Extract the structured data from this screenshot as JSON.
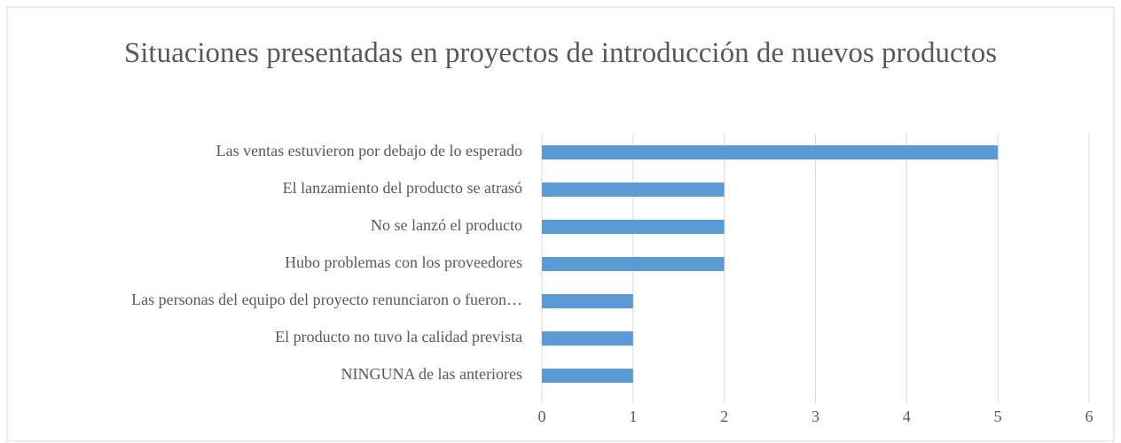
{
  "chart_data": {
    "type": "bar",
    "orientation": "horizontal",
    "title": "Situaciones presentadas en proyectos de introducción de nuevos productos",
    "categories": [
      "Las ventas estuvieron por debajo de lo esperado",
      "El lanzamiento del producto se atrasó",
      "No se lanzó el producto",
      "Hubo problemas con los proveedores",
      "Las personas del equipo del proyecto renunciaron o fueron…",
      "El producto no tuvo la calidad prevista",
      "NINGUNA de las anteriores"
    ],
    "values": [
      5,
      2,
      2,
      2,
      1,
      1,
      1
    ],
    "color": "#5b9bd5",
    "xlim": [
      0,
      6
    ],
    "xticks": [
      0,
      1,
      2,
      3,
      4,
      5,
      6
    ],
    "grid": true
  }
}
